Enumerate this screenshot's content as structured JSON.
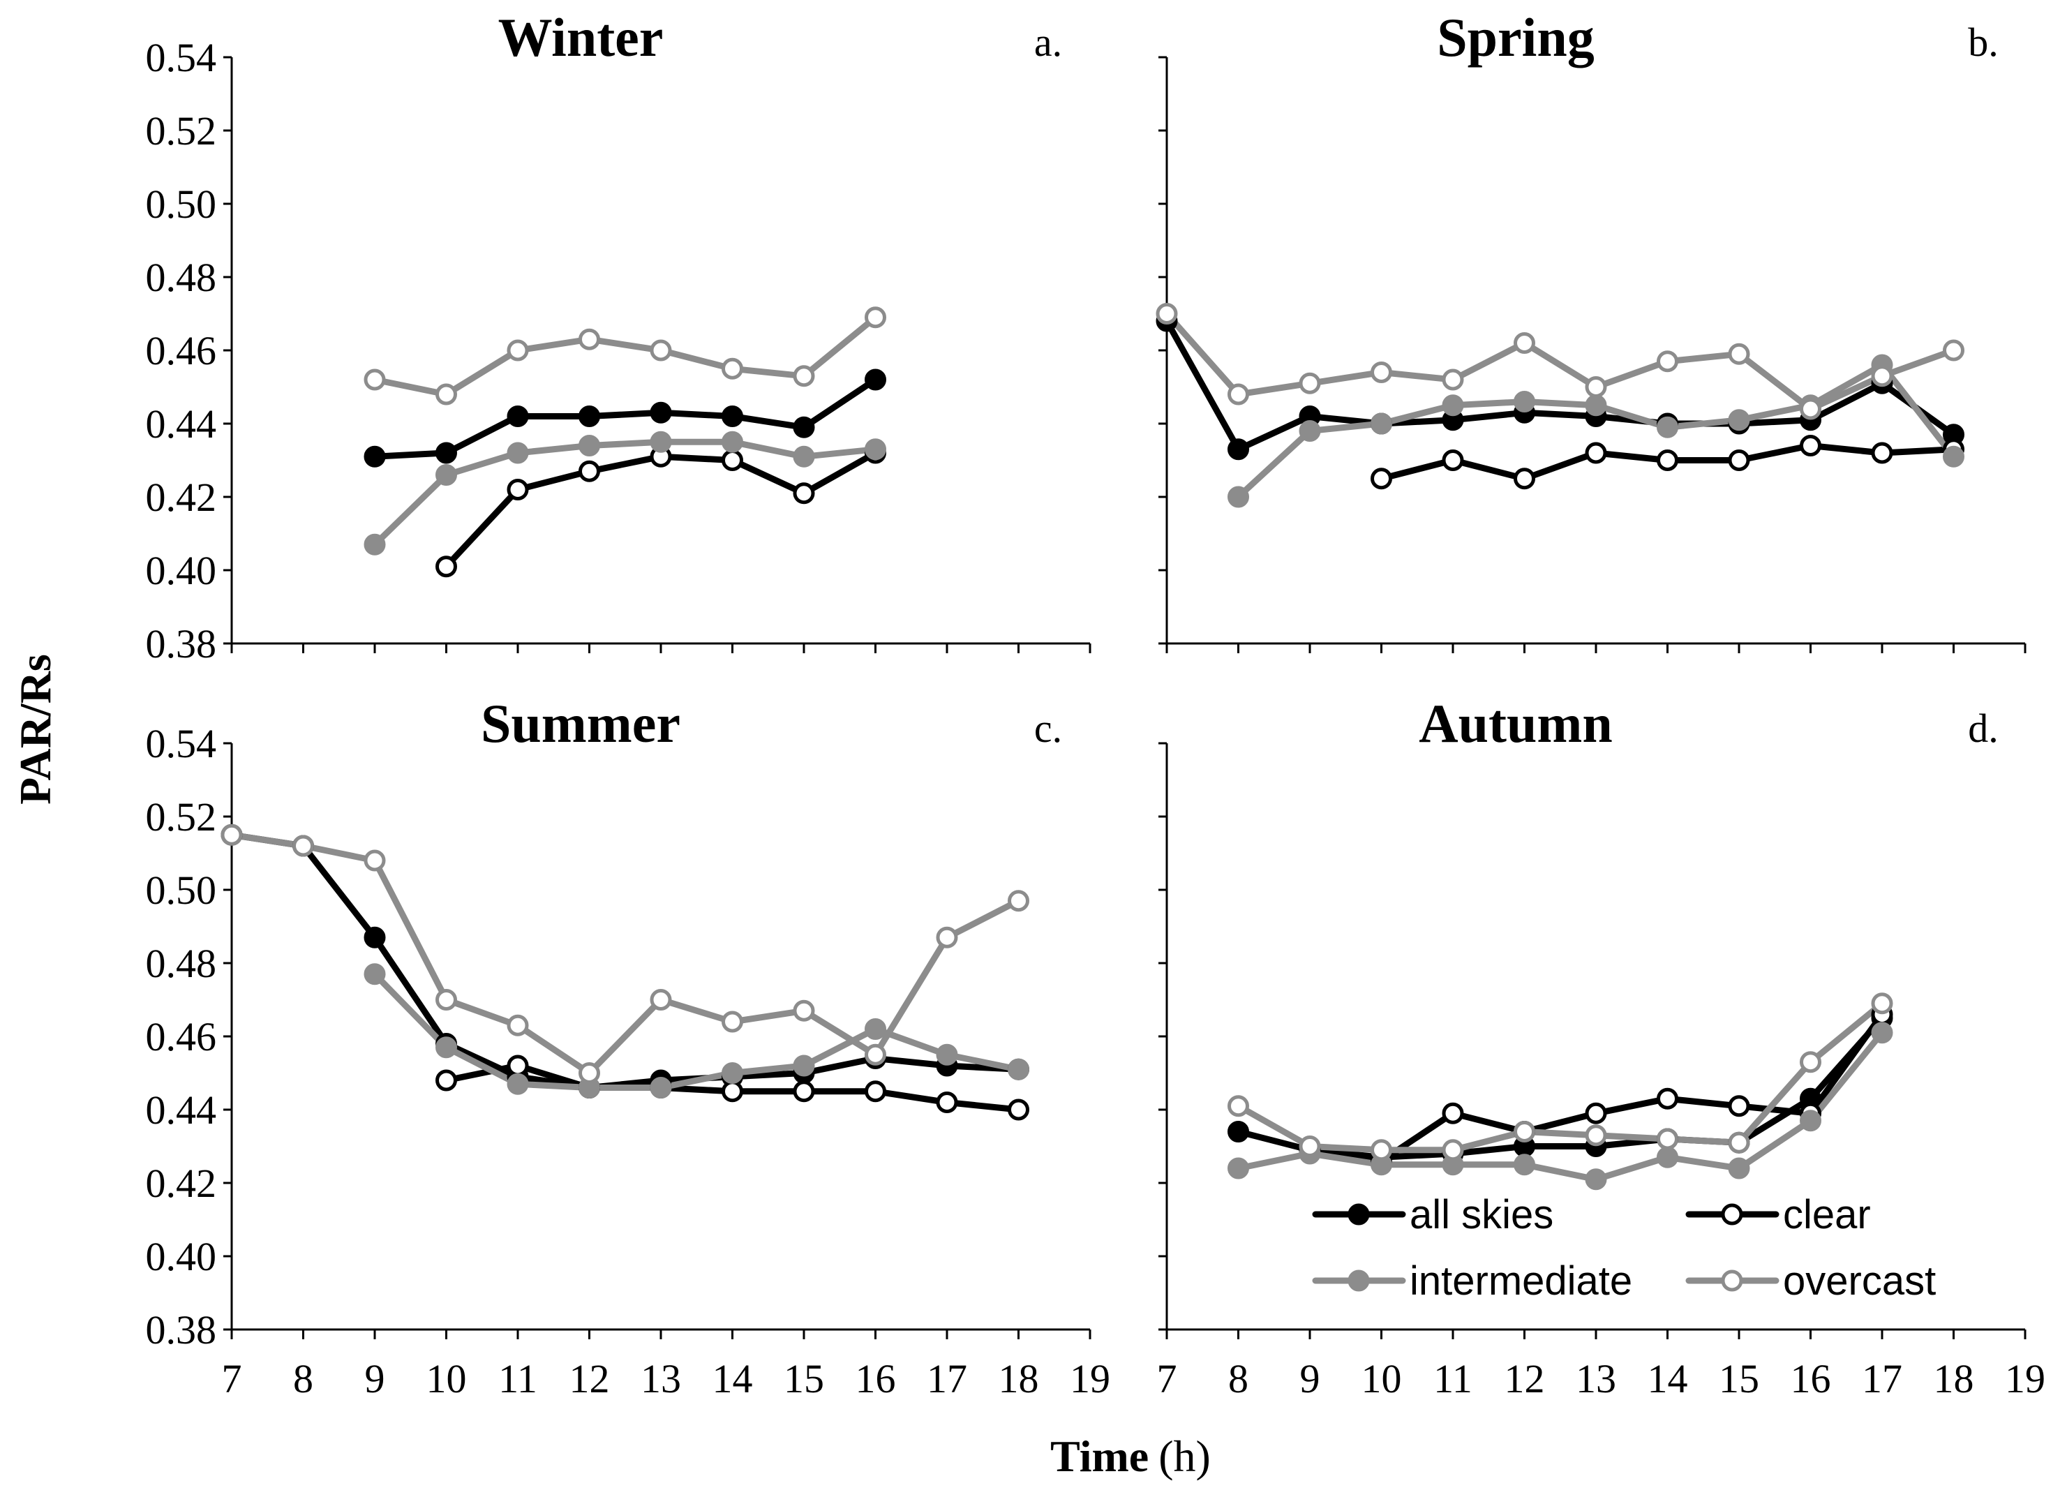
{
  "chart_data": {
    "type": "line",
    "ylabel": "PAR/Rs",
    "xlabel_bold": "Time",
    "xlabel_unit": "(h)",
    "xlim": [
      7,
      19
    ],
    "ylim": [
      0.38,
      0.54
    ],
    "x_ticks": [
      7,
      8,
      9,
      10,
      11,
      12,
      13,
      14,
      15,
      16,
      17,
      18,
      19
    ],
    "y_ticks": [
      "0.38",
      "0.40",
      "0.42",
      "0.44",
      "0.46",
      "0.48",
      "0.50",
      "0.52",
      "0.54"
    ],
    "series_styles": {
      "all skies": {
        "line": "#000000",
        "marker_fill": "#000000",
        "marker_stroke": "#000000"
      },
      "clear": {
        "line": "#000000",
        "marker_fill": "#ffffff",
        "marker_stroke": "#000000"
      },
      "intermediate": {
        "line": "#8c8c8c",
        "marker_fill": "#8c8c8c",
        "marker_stroke": "#8c8c8c"
      },
      "overcast": {
        "line": "#8c8c8c",
        "marker_fill": "#ffffff",
        "marker_stroke": "#8c8c8c"
      }
    },
    "legend": {
      "location": "lower-right of panel d",
      "entries": [
        "all skies",
        "clear",
        "intermediate",
        "overcast"
      ]
    },
    "panels": [
      {
        "title": "Winter",
        "letter": "a.",
        "show_y_tick_labels": true,
        "show_x_tick_labels": false,
        "series": [
          {
            "name": "all skies",
            "x": [
              9,
              10,
              11,
              12,
              13,
              14,
              15,
              16
            ],
            "y": [
              0.431,
              0.432,
              0.442,
              0.442,
              0.443,
              0.442,
              0.439,
              0.452
            ]
          },
          {
            "name": "clear",
            "x": [
              10,
              11,
              12,
              13,
              14,
              15,
              16
            ],
            "y": [
              0.401,
              0.422,
              0.427,
              0.431,
              0.43,
              0.421,
              0.432
            ]
          },
          {
            "name": "intermediate",
            "x": [
              9,
              10,
              11,
              12,
              13,
              14,
              15,
              16
            ],
            "y": [
              0.407,
              0.426,
              0.432,
              0.434,
              0.435,
              0.435,
              0.431,
              0.433
            ]
          },
          {
            "name": "overcast",
            "x": [
              9,
              10,
              11,
              12,
              13,
              14,
              15,
              16
            ],
            "y": [
              0.452,
              0.448,
              0.46,
              0.463,
              0.46,
              0.455,
              0.453,
              0.469
            ]
          }
        ]
      },
      {
        "title": "Spring",
        "letter": "b.",
        "show_y_tick_labels": false,
        "show_x_tick_labels": false,
        "series": [
          {
            "name": "all skies",
            "x": [
              7,
              8,
              9,
              10,
              11,
              12,
              13,
              14,
              15,
              16,
              17,
              18
            ],
            "y": [
              0.468,
              0.433,
              0.442,
              0.44,
              0.441,
              0.443,
              0.442,
              0.44,
              0.44,
              0.441,
              0.451,
              0.437
            ]
          },
          {
            "name": "clear",
            "x": [
              10,
              11,
              12,
              13,
              14,
              15,
              16,
              17,
              18
            ],
            "y": [
              0.425,
              0.43,
              0.425,
              0.432,
              0.43,
              0.43,
              0.434,
              0.432,
              0.433
            ]
          },
          {
            "name": "intermediate",
            "x": [
              8,
              9,
              10,
              11,
              12,
              13,
              14,
              15,
              16,
              17,
              18
            ],
            "y": [
              0.42,
              0.438,
              0.44,
              0.445,
              0.446,
              0.445,
              0.439,
              0.441,
              0.445,
              0.456,
              0.431
            ]
          },
          {
            "name": "overcast",
            "x": [
              7,
              8,
              9,
              10,
              11,
              12,
              13,
              14,
              15,
              16,
              17,
              18
            ],
            "y": [
              0.47,
              0.448,
              0.451,
              0.454,
              0.452,
              0.462,
              0.45,
              0.457,
              0.459,
              0.444,
              0.453,
              0.46
            ]
          }
        ]
      },
      {
        "title": "Summer",
        "letter": "c.",
        "show_y_tick_labels": true,
        "show_x_tick_labels": true,
        "series": [
          {
            "name": "all skies",
            "x": [
              7,
              8,
              9,
              10,
              11,
              12,
              13,
              14,
              15,
              16,
              17,
              18
            ],
            "y": [
              0.515,
              0.512,
              0.487,
              0.458,
              0.449,
              0.446,
              0.448,
              0.449,
              0.45,
              0.454,
              0.452,
              0.451
            ]
          },
          {
            "name": "clear",
            "x": [
              10,
              11,
              12,
              13,
              14,
              15,
              16,
              17,
              18
            ],
            "y": [
              0.448,
              0.452,
              0.446,
              0.446,
              0.445,
              0.445,
              0.445,
              0.442,
              0.44
            ]
          },
          {
            "name": "intermediate",
            "x": [
              9,
              10,
              11,
              12,
              13,
              14,
              15,
              16,
              17,
              18
            ],
            "y": [
              0.477,
              0.457,
              0.447,
              0.446,
              0.446,
              0.45,
              0.452,
              0.462,
              0.455,
              0.451
            ]
          },
          {
            "name": "overcast",
            "x": [
              7,
              8,
              9,
              10,
              11,
              12,
              13,
              14,
              15,
              16,
              17,
              18
            ],
            "y": [
              0.515,
              0.512,
              0.508,
              0.47,
              0.463,
              0.45,
              0.47,
              0.464,
              0.467,
              0.455,
              0.487,
              0.497
            ]
          }
        ]
      },
      {
        "title": "Autumn",
        "letter": "d.",
        "show_y_tick_labels": false,
        "show_x_tick_labels": true,
        "series": [
          {
            "name": "all skies",
            "x": [
              8,
              9,
              10,
              11,
              12,
              13,
              14,
              15,
              16,
              17
            ],
            "y": [
              0.434,
              0.429,
              0.427,
              0.428,
              0.43,
              0.43,
              0.432,
              0.431,
              0.443,
              0.465
            ]
          },
          {
            "name": "clear",
            "x": [
              9,
              10,
              11,
              12,
              13,
              14,
              15,
              16,
              17
            ],
            "y": [
              0.429,
              0.426,
              0.439,
              0.434,
              0.439,
              0.443,
              0.441,
              0.439,
              0.466
            ]
          },
          {
            "name": "intermediate",
            "x": [
              8,
              9,
              10,
              11,
              12,
              13,
              14,
              15,
              16,
              17
            ],
            "y": [
              0.424,
              0.428,
              0.425,
              0.425,
              0.425,
              0.421,
              0.427,
              0.424,
              0.437,
              0.461
            ]
          },
          {
            "name": "overcast",
            "x": [
              8,
              9,
              10,
              11,
              12,
              13,
              14,
              15,
              16,
              17
            ],
            "y": [
              0.441,
              0.43,
              0.429,
              0.429,
              0.434,
              0.433,
              0.432,
              0.431,
              0.453,
              0.469
            ]
          }
        ]
      }
    ]
  }
}
